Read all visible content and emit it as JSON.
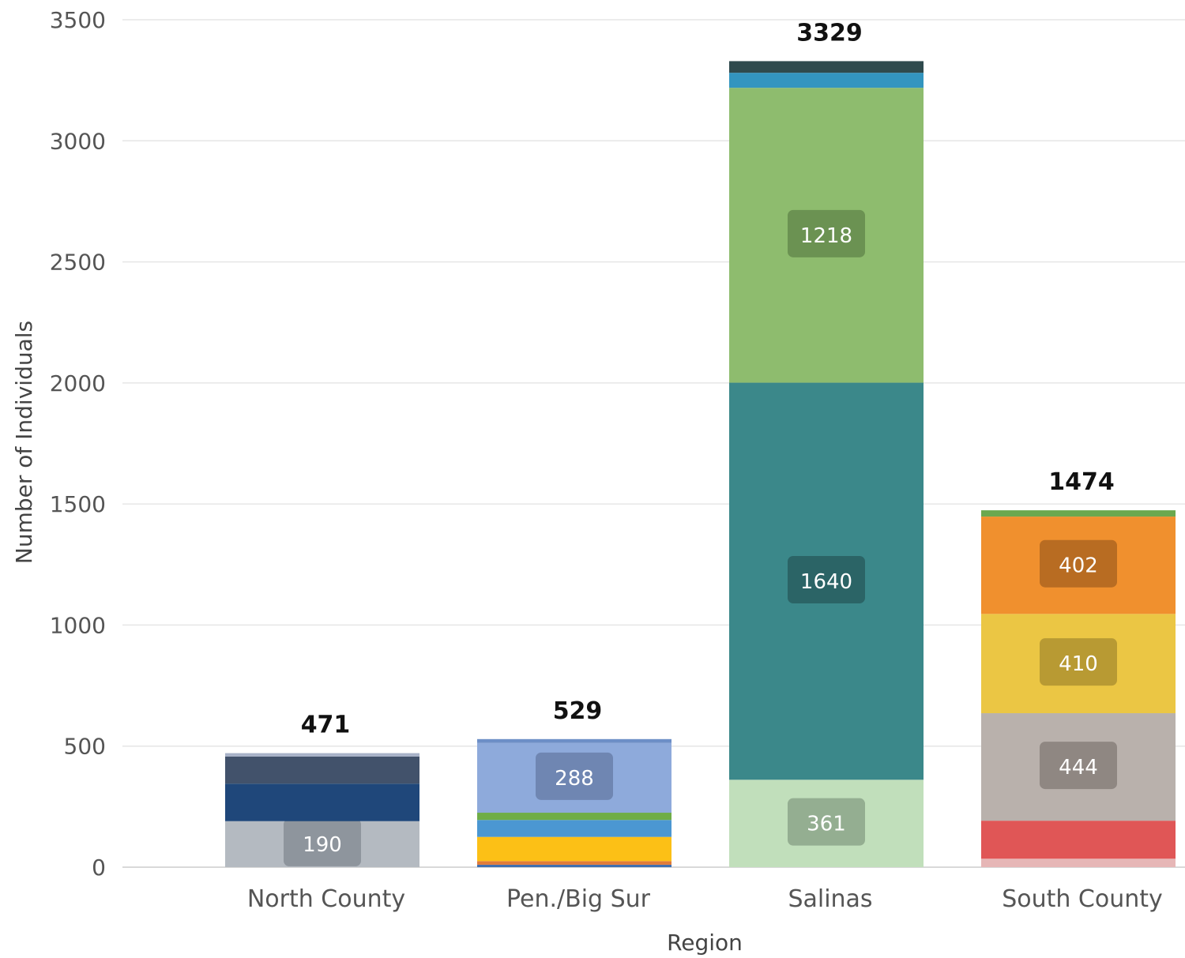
{
  "chart_data": {
    "type": "bar",
    "stacked": true,
    "xlabel": "Region",
    "ylabel": "Number of Individuals",
    "ylim": [
      0,
      3500
    ],
    "yticks": [
      0,
      500,
      1000,
      1500,
      2000,
      2500,
      3000,
      3500
    ],
    "grid": true,
    "categories": [
      "North County",
      "Pen./Big Sur",
      "Salinas",
      "South County"
    ],
    "totals": [
      471,
      529,
      3329,
      1474
    ],
    "stacks": [
      {
        "category": "North County",
        "segments": [
          {
            "value": 190,
            "color": "#b4bac1",
            "label": "190",
            "label_color": "#8e959d"
          },
          {
            "value": 155,
            "color": "#1f477a"
          },
          {
            "value": 112,
            "color": "#42526b"
          },
          {
            "value": 14,
            "color": "#a8b2c8"
          }
        ]
      },
      {
        "category": "Pen./Big Sur",
        "segments": [
          {
            "value": 10,
            "color": "#3e6fb0"
          },
          {
            "value": 15,
            "color": "#e07b39"
          },
          {
            "value": 100,
            "color": "#fcc016"
          },
          {
            "value": 70,
            "color": "#4b97d2"
          },
          {
            "value": 30,
            "color": "#6fad47"
          },
          {
            "value": 288,
            "color": "#8eaadb",
            "label": "288",
            "label_color": "#6f86b2"
          },
          {
            "value": 16,
            "color": "#6d8fc7"
          }
        ]
      },
      {
        "category": "Salinas",
        "segments": [
          {
            "value": 361,
            "color": "#c1dfbb",
            "label": "361",
            "label_color": "#94ae91"
          },
          {
            "value": 1640,
            "color": "#3b888a",
            "label": "1640",
            "label_color": "#2b6466"
          },
          {
            "value": 1218,
            "color": "#8ebc6e",
            "label": "1218",
            "label_color": "#6b9252"
          },
          {
            "value": 62,
            "color": "#3395bf"
          },
          {
            "value": 48,
            "color": "#2f4a4d"
          }
        ]
      },
      {
        "category": "South County",
        "segments": [
          {
            "value": 35,
            "color": "#e6b6b6"
          },
          {
            "value": 157,
            "color": "#e05656"
          },
          {
            "value": 444,
            "color": "#b9b1ac",
            "label": "444",
            "label_color": "#8f8782"
          },
          {
            "value": 410,
            "color": "#ebc644",
            "label": "410",
            "label_color": "#b89a33"
          },
          {
            "value": 402,
            "color": "#f0902e",
            "label": "402",
            "label_color": "#b86c22"
          },
          {
            "value": 26,
            "color": "#6aa84f"
          }
        ]
      }
    ]
  }
}
